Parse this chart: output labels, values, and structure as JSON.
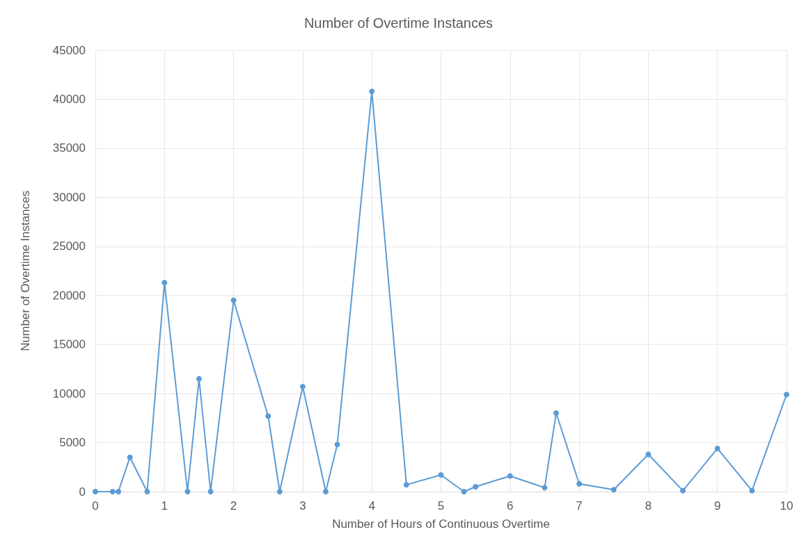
{
  "chart_data": {
    "type": "line",
    "title": "Number of Overtime Instances",
    "xlabel": "Number of Hours of Continuous Overtime",
    "ylabel": "Number of Overtime Instances",
    "x": [
      0,
      0.25,
      0.333,
      0.5,
      0.75,
      1,
      1.333,
      1.5,
      1.667,
      2,
      2.5,
      2.667,
      3,
      3.333,
      3.5,
      4,
      4.5,
      5,
      5.333,
      5.5,
      6,
      6.5,
      6.667,
      7,
      7.5,
      8,
      8.5,
      9,
      9.5,
      10
    ],
    "series": [
      {
        "color": "#5b9bd5",
        "values": [
          0,
          0,
          0,
          3500,
          0,
          21300,
          0,
          11500,
          0,
          19500,
          7700,
          0,
          10700,
          0,
          4800,
          40800,
          700,
          1700,
          0,
          500,
          1600,
          400,
          8000,
          800,
          200,
          3800,
          100,
          4400,
          100,
          9900
        ]
      }
    ],
    "xlim": [
      0,
      10
    ],
    "xticks": [
      0,
      1,
      2,
      3,
      4,
      5,
      6,
      7,
      8,
      9,
      10
    ],
    "ylim": [
      0,
      45000
    ],
    "yticks": [
      0,
      5000,
      10000,
      15000,
      20000,
      25000,
      30000,
      35000,
      40000,
      45000
    ],
    "grid": true,
    "marker": "circle",
    "line_style": "solid"
  }
}
